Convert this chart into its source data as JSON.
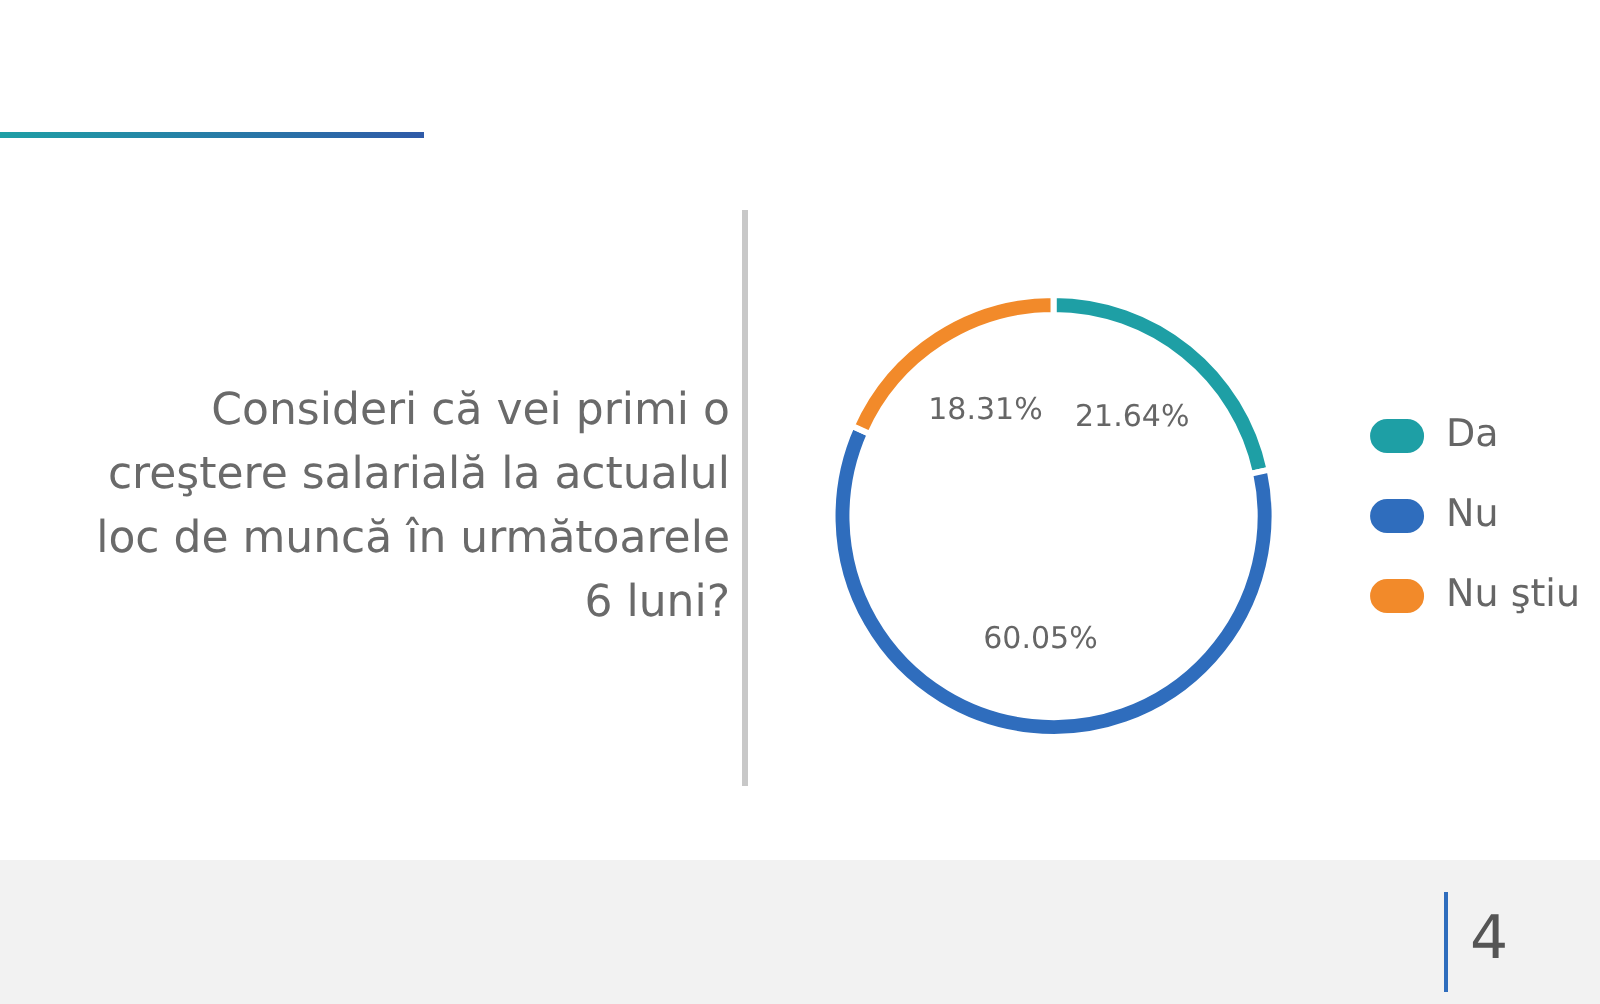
{
  "chart_data": {
    "type": "donut",
    "title": "Consideri că vei primi o creştere salarială la actualul loc de muncă în următoarele 6 luni?",
    "categories": [
      "Da",
      "Nu",
      "Nu ştiu"
    ],
    "values": [
      21.64,
      60.05,
      18.31
    ],
    "colors": [
      "#1e9fa5",
      "#2f6dbd",
      "#f28a2a"
    ],
    "value_labels": [
      "21.64%",
      "60.05%",
      "18.31%"
    ],
    "legend": "right",
    "annotations": [
      "4"
    ]
  }
}
